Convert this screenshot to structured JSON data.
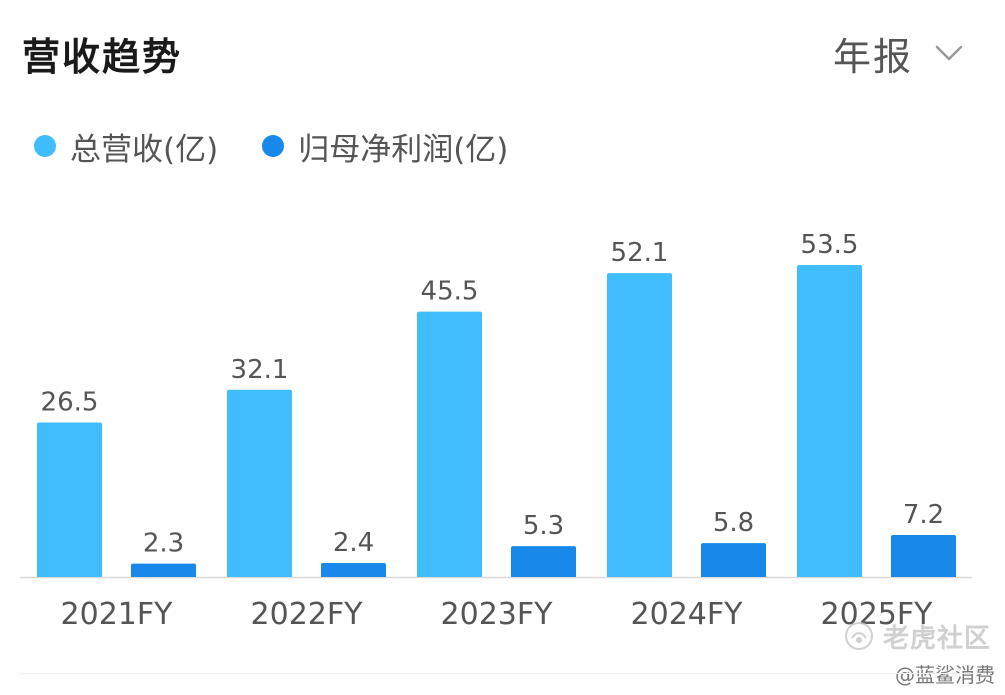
{
  "header": {
    "title": "营收趋势",
    "period": "年报",
    "period_icon": "chevron-down-icon"
  },
  "colors": {
    "revenue": "#3fbdfc",
    "net_profit": "#1889ea",
    "axis": "#d9d9d9",
    "label": "#555555"
  },
  "chart_data": {
    "type": "bar",
    "categories": [
      "2021FY",
      "2022FY",
      "2023FY",
      "2024FY",
      "2025FY"
    ],
    "series": [
      {
        "name": "总营收(亿)",
        "values": [
          26.5,
          32.1,
          45.5,
          52.1,
          53.5
        ]
      },
      {
        "name": "归母净利润(亿)",
        "values": [
          2.3,
          2.4,
          5.3,
          5.8,
          7.2
        ]
      }
    ],
    "ylim": [
      0,
      60
    ],
    "grid": false,
    "legend": "top-left",
    "data_labels": true
  },
  "watermark": {
    "text": "老虎社区",
    "sub": "@蓝鲨消费",
    "icon": "tiger-logo-icon"
  }
}
